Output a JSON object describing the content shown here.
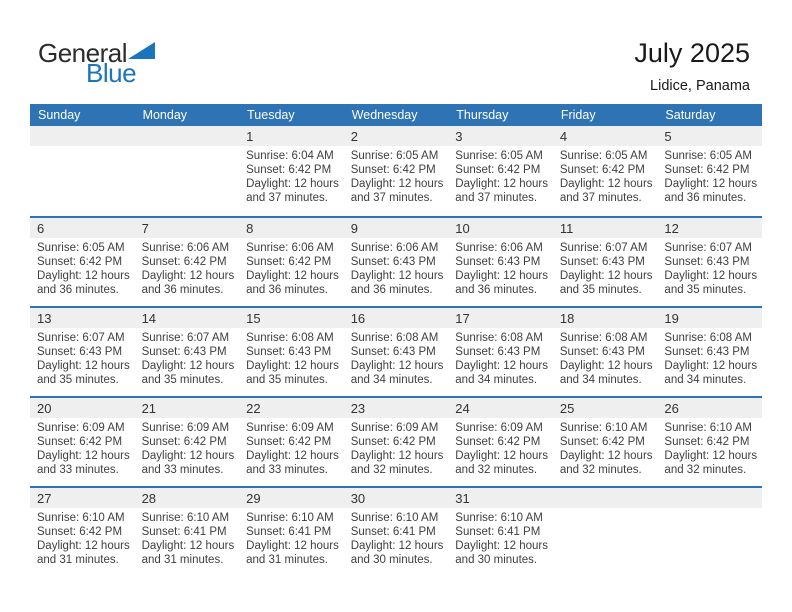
{
  "logo": {
    "part1": "General",
    "part2": "Blue"
  },
  "header": {
    "title": "July 2025",
    "location": "Lidice, Panama"
  },
  "colors": {
    "header_bg": "#2e74b5",
    "separator": "#2e74b5",
    "day_strip_bg": "#efefef",
    "logo_blue": "#1b75bc",
    "detail_text": "#3f3f3f"
  },
  "weekdays": [
    "Sunday",
    "Monday",
    "Tuesday",
    "Wednesday",
    "Thursday",
    "Friday",
    "Saturday"
  ],
  "weeks": [
    [
      null,
      null,
      {
        "day": "1",
        "lines": [
          "Sunrise: 6:04 AM",
          "Sunset: 6:42 PM",
          "Daylight: 12 hours",
          "and 37 minutes."
        ]
      },
      {
        "day": "2",
        "lines": [
          "Sunrise: 6:05 AM",
          "Sunset: 6:42 PM",
          "Daylight: 12 hours",
          "and 37 minutes."
        ]
      },
      {
        "day": "3",
        "lines": [
          "Sunrise: 6:05 AM",
          "Sunset: 6:42 PM",
          "Daylight: 12 hours",
          "and 37 minutes."
        ]
      },
      {
        "day": "4",
        "lines": [
          "Sunrise: 6:05 AM",
          "Sunset: 6:42 PM",
          "Daylight: 12 hours",
          "and 37 minutes."
        ]
      },
      {
        "day": "5",
        "lines": [
          "Sunrise: 6:05 AM",
          "Sunset: 6:42 PM",
          "Daylight: 12 hours",
          "and 36 minutes."
        ]
      }
    ],
    [
      {
        "day": "6",
        "lines": [
          "Sunrise: 6:05 AM",
          "Sunset: 6:42 PM",
          "Daylight: 12 hours",
          "and 36 minutes."
        ]
      },
      {
        "day": "7",
        "lines": [
          "Sunrise: 6:06 AM",
          "Sunset: 6:42 PM",
          "Daylight: 12 hours",
          "and 36 minutes."
        ]
      },
      {
        "day": "8",
        "lines": [
          "Sunrise: 6:06 AM",
          "Sunset: 6:42 PM",
          "Daylight: 12 hours",
          "and 36 minutes."
        ]
      },
      {
        "day": "9",
        "lines": [
          "Sunrise: 6:06 AM",
          "Sunset: 6:43 PM",
          "Daylight: 12 hours",
          "and 36 minutes."
        ]
      },
      {
        "day": "10",
        "lines": [
          "Sunrise: 6:06 AM",
          "Sunset: 6:43 PM",
          "Daylight: 12 hours",
          "and 36 minutes."
        ]
      },
      {
        "day": "11",
        "lines": [
          "Sunrise: 6:07 AM",
          "Sunset: 6:43 PM",
          "Daylight: 12 hours",
          "and 35 minutes."
        ]
      },
      {
        "day": "12",
        "lines": [
          "Sunrise: 6:07 AM",
          "Sunset: 6:43 PM",
          "Daylight: 12 hours",
          "and 35 minutes."
        ]
      }
    ],
    [
      {
        "day": "13",
        "lines": [
          "Sunrise: 6:07 AM",
          "Sunset: 6:43 PM",
          "Daylight: 12 hours",
          "and 35 minutes."
        ]
      },
      {
        "day": "14",
        "lines": [
          "Sunrise: 6:07 AM",
          "Sunset: 6:43 PM",
          "Daylight: 12 hours",
          "and 35 minutes."
        ]
      },
      {
        "day": "15",
        "lines": [
          "Sunrise: 6:08 AM",
          "Sunset: 6:43 PM",
          "Daylight: 12 hours",
          "and 35 minutes."
        ]
      },
      {
        "day": "16",
        "lines": [
          "Sunrise: 6:08 AM",
          "Sunset: 6:43 PM",
          "Daylight: 12 hours",
          "and 34 minutes."
        ]
      },
      {
        "day": "17",
        "lines": [
          "Sunrise: 6:08 AM",
          "Sunset: 6:43 PM",
          "Daylight: 12 hours",
          "and 34 minutes."
        ]
      },
      {
        "day": "18",
        "lines": [
          "Sunrise: 6:08 AM",
          "Sunset: 6:43 PM",
          "Daylight: 12 hours",
          "and 34 minutes."
        ]
      },
      {
        "day": "19",
        "lines": [
          "Sunrise: 6:08 AM",
          "Sunset: 6:43 PM",
          "Daylight: 12 hours",
          "and 34 minutes."
        ]
      }
    ],
    [
      {
        "day": "20",
        "lines": [
          "Sunrise: 6:09 AM",
          "Sunset: 6:42 PM",
          "Daylight: 12 hours",
          "and 33 minutes."
        ]
      },
      {
        "day": "21",
        "lines": [
          "Sunrise: 6:09 AM",
          "Sunset: 6:42 PM",
          "Daylight: 12 hours",
          "and 33 minutes."
        ]
      },
      {
        "day": "22",
        "lines": [
          "Sunrise: 6:09 AM",
          "Sunset: 6:42 PM",
          "Daylight: 12 hours",
          "and 33 minutes."
        ]
      },
      {
        "day": "23",
        "lines": [
          "Sunrise: 6:09 AM",
          "Sunset: 6:42 PM",
          "Daylight: 12 hours",
          "and 32 minutes."
        ]
      },
      {
        "day": "24",
        "lines": [
          "Sunrise: 6:09 AM",
          "Sunset: 6:42 PM",
          "Daylight: 12 hours",
          "and 32 minutes."
        ]
      },
      {
        "day": "25",
        "lines": [
          "Sunrise: 6:10 AM",
          "Sunset: 6:42 PM",
          "Daylight: 12 hours",
          "and 32 minutes."
        ]
      },
      {
        "day": "26",
        "lines": [
          "Sunrise: 6:10 AM",
          "Sunset: 6:42 PM",
          "Daylight: 12 hours",
          "and 32 minutes."
        ]
      }
    ],
    [
      {
        "day": "27",
        "lines": [
          "Sunrise: 6:10 AM",
          "Sunset: 6:42 PM",
          "Daylight: 12 hours",
          "and 31 minutes."
        ]
      },
      {
        "day": "28",
        "lines": [
          "Sunrise: 6:10 AM",
          "Sunset: 6:41 PM",
          "Daylight: 12 hours",
          "and 31 minutes."
        ]
      },
      {
        "day": "29",
        "lines": [
          "Sunrise: 6:10 AM",
          "Sunset: 6:41 PM",
          "Daylight: 12 hours",
          "and 31 minutes."
        ]
      },
      {
        "day": "30",
        "lines": [
          "Sunrise: 6:10 AM",
          "Sunset: 6:41 PM",
          "Daylight: 12 hours",
          "and 30 minutes."
        ]
      },
      {
        "day": "31",
        "lines": [
          "Sunrise: 6:10 AM",
          "Sunset: 6:41 PM",
          "Daylight: 12 hours",
          "and 30 minutes."
        ]
      },
      null,
      null
    ]
  ]
}
